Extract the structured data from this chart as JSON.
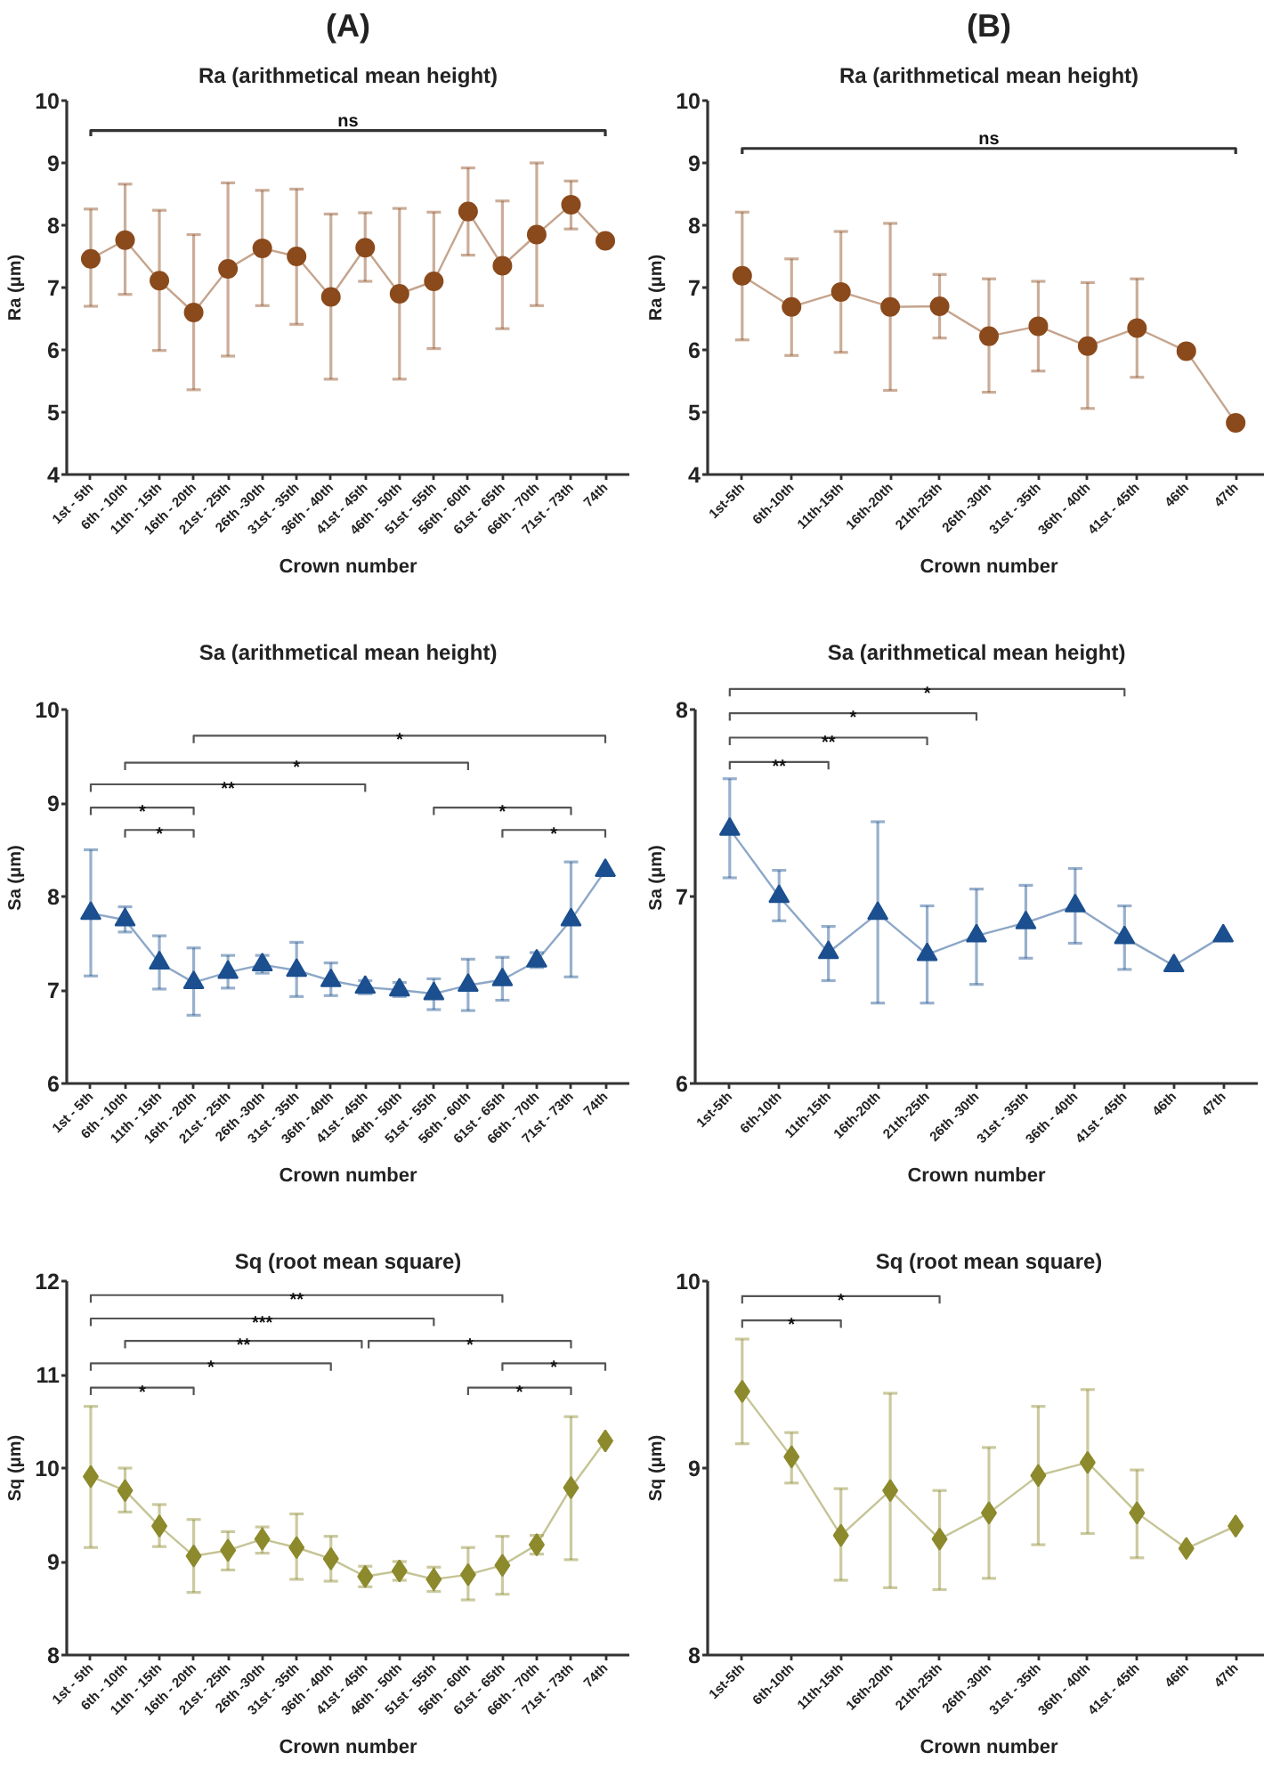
{
  "chart_data": [
    {
      "type": "line",
      "title": "(A)",
      "subtitle": "Ra (arithmetical mean height)",
      "xlabel": "Crown number",
      "ylabel": "Ra (μm)",
      "categories": [
        "1st - 5th",
        "6th - 10th",
        "11th - 15th",
        "16th - 20th",
        "21st - 25th",
        "26th -30th",
        "31st - 35th",
        "36th - 40th",
        "41st - 45th",
        "46th - 50th",
        "51st - 55th",
        "56th - 60th",
        "61st - 65th",
        "66th - 70th",
        "71st - 73th",
        "74th"
      ],
      "values": [
        7.46,
        7.76,
        7.11,
        6.6,
        7.3,
        7.63,
        7.5,
        6.85,
        7.64,
        6.9,
        7.1,
        8.22,
        7.35,
        7.85,
        8.33,
        7.75
      ],
      "errors": [
        [
          6.7,
          8.26
        ],
        [
          6.89,
          8.66
        ],
        [
          5.99,
          8.24
        ],
        [
          5.36,
          7.85
        ],
        [
          5.9,
          8.68
        ],
        [
          6.71,
          8.56
        ],
        [
          6.41,
          8.58
        ],
        [
          5.53,
          8.18
        ],
        [
          7.1,
          8.2
        ],
        [
          5.53,
          8.27
        ],
        [
          6.02,
          8.21
        ],
        [
          7.52,
          8.92
        ],
        [
          6.34,
          8.39
        ],
        [
          6.71,
          9.0
        ],
        [
          7.94,
          8.71
        ],
        null
      ],
      "color": "#8b4a1c",
      "marker": "circle",
      "line_style": "solid",
      "ylim": [
        4,
        10
      ],
      "yticks": [
        4,
        5,
        6,
        7,
        8,
        9,
        10
      ],
      "annotations": [
        "ns"
      ]
    },
    {
      "type": "line",
      "title": "(B)",
      "subtitle": "Ra (arithmetical mean height)",
      "xlabel": "Crown number",
      "ylabel": "Ra (μm)",
      "categories": [
        "1st-5th",
        "6th-10th",
        "11th-15th",
        "16th-20th",
        "21th-25th",
        "26th -30th",
        "31st - 35th",
        "36th - 40th",
        "41st - 45th",
        "46th",
        "47th"
      ],
      "values": [
        7.19,
        6.69,
        6.93,
        6.69,
        6.7,
        6.22,
        6.38,
        6.06,
        6.35,
        5.98,
        4.83
      ],
      "errors": [
        [
          6.16,
          8.21
        ],
        [
          5.91,
          7.46
        ],
        [
          5.96,
          7.9
        ],
        [
          5.35,
          8.03
        ],
        [
          6.19,
          7.21
        ],
        [
          5.32,
          7.14
        ],
        [
          5.66,
          7.1
        ],
        [
          5.06,
          7.08
        ],
        [
          5.56,
          7.14
        ],
        null,
        null
      ],
      "color": "#8b4a1c",
      "marker": "circle",
      "line_style": "solid",
      "ylim": [
        4,
        10
      ],
      "yticks": [
        4,
        5,
        6,
        7,
        8,
        9,
        10
      ],
      "annotations": [
        "ns"
      ]
    },
    {
      "type": "line",
      "title": "Sa (arithmetical mean height)",
      "xlabel": "Crown number",
      "ylabel": "Sa (μm)",
      "categories": [
        "1st - 5th",
        "6th - 10th",
        "11th - 15th",
        "16th - 20th",
        "21st - 25th",
        "26th -30th",
        "31st - 35th",
        "36th - 40th",
        "41st - 45th",
        "46th - 50th",
        "51st - 55th",
        "56th - 60th",
        "61st - 65th",
        "66th - 70th",
        "71st - 73th",
        "74th"
      ],
      "values": [
        7.82,
        7.75,
        7.29,
        7.08,
        7.19,
        7.27,
        7.21,
        7.1,
        7.03,
        7.0,
        6.96,
        7.05,
        7.11,
        7.31,
        7.75,
        8.28
      ],
      "errors": [
        [
          7.15,
          8.5
        ],
        [
          7.62,
          7.89
        ],
        [
          7.01,
          7.58
        ],
        [
          6.73,
          7.45
        ],
        [
          7.02,
          7.37
        ],
        [
          7.18,
          7.37
        ],
        [
          6.93,
          7.51
        ],
        [
          6.94,
          7.29
        ],
        [
          6.96,
          7.1
        ],
        [
          6.93,
          7.08
        ],
        [
          6.79,
          7.12
        ],
        [
          6.78,
          7.33
        ],
        [
          6.89,
          7.35
        ],
        [
          7.24,
          7.4
        ],
        [
          7.14,
          8.37
        ],
        null
      ],
      "color": "#1b4f8f",
      "marker": "triangle",
      "line_style": "solid",
      "ylim": [
        6,
        10
      ],
      "yticks": [
        6,
        7,
        8,
        9,
        10
      ],
      "annotations": [
        "*",
        "*",
        "**",
        "*",
        "*",
        "*",
        "*"
      ]
    },
    {
      "type": "line",
      "title": "Sa (arithmetical mean height)",
      "xlabel": "Crown number",
      "ylabel": "Sa (μm)",
      "categories": [
        "1st-5th",
        "6th-10th",
        "11th-15th",
        "16th-20th",
        "21th-25th",
        "26th -30th",
        "31st - 35th",
        "36th - 40th",
        "41st - 45th",
        "46th",
        "47th"
      ],
      "values": [
        7.36,
        7.0,
        6.7,
        6.91,
        6.69,
        6.79,
        6.86,
        6.95,
        6.78,
        6.63,
        6.79
      ],
      "errors": [
        [
          7.1,
          7.63
        ],
        [
          6.87,
          7.14
        ],
        [
          6.55,
          6.84
        ],
        [
          6.43,
          7.4
        ],
        [
          6.43,
          6.95
        ],
        [
          6.53,
          7.04
        ],
        [
          6.67,
          7.06
        ],
        [
          6.75,
          7.15
        ],
        [
          6.61,
          6.95
        ],
        null,
        null
      ],
      "color": "#1b4f8f",
      "marker": "triangle",
      "line_style": "solid",
      "ylim": [
        6,
        8
      ],
      "yticks": [
        6,
        7,
        8
      ],
      "annotations": [
        "*",
        "*",
        "**",
        "**"
      ]
    },
    {
      "type": "line",
      "title": "Sq (root mean square)",
      "xlabel": "Crown number",
      "ylabel": "Sq (μm)",
      "categories": [
        "1st - 5th",
        "6th - 10th",
        "11th - 15th",
        "16th - 20th",
        "21st - 25th",
        "26th -30th",
        "31st - 35th",
        "36th - 40th",
        "41st - 45th",
        "46th - 50th",
        "51st - 55th",
        "56th - 60th",
        "61st - 65th",
        "66th - 70th",
        "71st - 73th",
        "74th"
      ],
      "values": [
        9.91,
        9.76,
        9.38,
        9.06,
        9.12,
        9.24,
        9.15,
        9.03,
        8.84,
        8.9,
        8.81,
        8.86,
        8.96,
        9.18,
        9.79,
        10.29
      ],
      "errors": [
        [
          9.15,
          10.66
        ],
        [
          9.53,
          10.0
        ],
        [
          9.16,
          9.61
        ],
        [
          8.67,
          9.45
        ],
        [
          8.91,
          9.32
        ],
        [
          9.09,
          9.37
        ],
        [
          8.81,
          9.51
        ],
        [
          8.79,
          9.27
        ],
        [
          8.73,
          8.95
        ],
        [
          8.8,
          9.0
        ],
        [
          8.68,
          8.94
        ],
        [
          8.59,
          9.15
        ],
        [
          8.65,
          9.27
        ],
        [
          9.08,
          9.28
        ],
        [
          9.02,
          10.55
        ],
        null
      ],
      "color": "#8c8a2c",
      "marker": "diamond",
      "line_style": "solid",
      "ylim": [
        8,
        12
      ],
      "yticks": [
        8,
        9,
        10,
        11,
        12
      ],
      "annotations": [
        "**",
        "***",
        "**",
        "*",
        "*",
        "*",
        "*",
        "*"
      ]
    },
    {
      "type": "line",
      "title": "Sq (root mean square)",
      "xlabel": "Crown number",
      "ylabel": "Sq (μm)",
      "categories": [
        "1st-5th",
        "6th-10th",
        "11th-15th",
        "16th-20th",
        "21th-25th",
        "26th -30th",
        "31st - 35th",
        "36th - 40th",
        "41st - 45th",
        "46th",
        "47th"
      ],
      "values": [
        9.41,
        9.06,
        8.64,
        8.88,
        8.62,
        8.76,
        8.96,
        9.03,
        8.76,
        8.57,
        8.69
      ],
      "errors": [
        [
          9.13,
          9.69
        ],
        [
          8.92,
          9.19
        ],
        [
          8.4,
          8.89
        ],
        [
          8.36,
          9.4
        ],
        [
          8.35,
          8.88
        ],
        [
          8.41,
          9.11
        ],
        [
          8.59,
          9.33
        ],
        [
          8.65,
          9.42
        ],
        [
          8.52,
          8.99
        ],
        null,
        null
      ],
      "color": "#8c8a2c",
      "marker": "diamond",
      "line_style": "solid",
      "ylim": [
        8,
        10
      ],
      "yticks": [
        8,
        9,
        10
      ],
      "annotations": [
        "*",
        "*"
      ]
    }
  ]
}
